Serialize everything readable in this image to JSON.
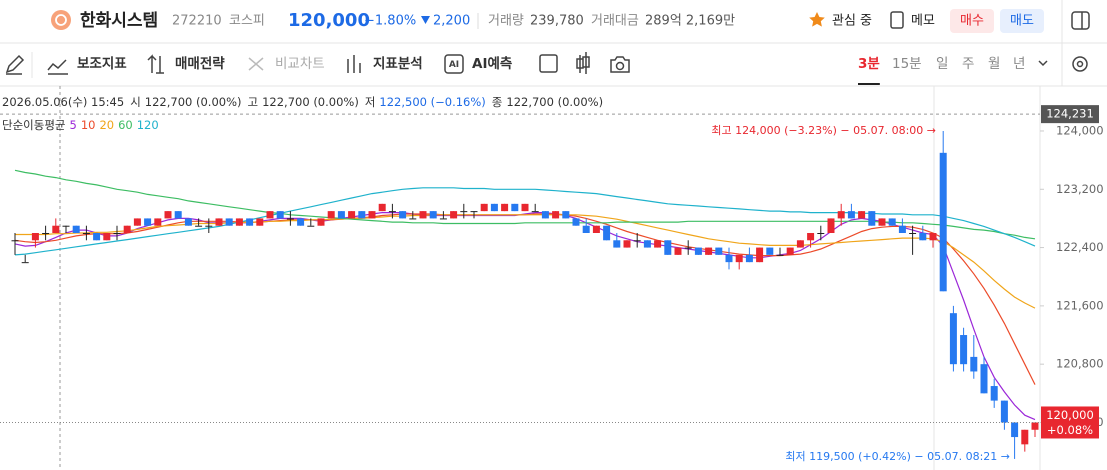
{
  "header": {
    "name": "한화시스템",
    "code": "272210",
    "market": "코스피",
    "price": "120,000",
    "change_rate": "−1.80%",
    "change": "2,200",
    "volume_label": "거래량",
    "volume": "239,780",
    "amount_label": "거래대금",
    "amount": "289억 2,169만",
    "watch": "관심 중",
    "memo": "메모",
    "buy": "매수",
    "sell": "매도"
  },
  "toolbar": {
    "tools": [
      "보조지표",
      "매매전략",
      "비교차트",
      "지표분석",
      "AI예측"
    ],
    "ai_icon": "AI",
    "timeframes": [
      "3분",
      "15분",
      "일",
      "주",
      "월",
      "년"
    ],
    "selected": 0
  },
  "chart_data": {
    "type": "candlestick",
    "info": {
      "date": "2026.05.06(수) 15:45",
      "fields": [
        {
          "label": "시",
          "value": "122,700 (0.00%)"
        },
        {
          "label": "고",
          "value": "122,700 (0.00%)"
        },
        {
          "label": "저",
          "value": "122,500 (−0.16%)"
        },
        {
          "label": "종",
          "value": "122,700 (0.00%)"
        }
      ]
    },
    "indicator_label": "단순이동평균",
    "up_color": "#e8272f",
    "down_color": "#2679f0",
    "flat_color": "#222222",
    "ylim": [
      119348,
      124617
    ],
    "yticks": [
      {
        "value": 124000,
        "label": "124,000"
      },
      {
        "value": 123200,
        "label": "123,200"
      },
      {
        "value": 122400,
        "label": "122,400"
      },
      {
        "value": 121600,
        "label": "121,600"
      },
      {
        "value": 120800,
        "label": "120,800"
      },
      {
        "value": 120000,
        "label": "120,000"
      }
    ],
    "grid": false,
    "crosshair": {
      "value": 124231,
      "label": "124,231"
    },
    "current_price": {
      "value": 120000,
      "label": "120,000",
      "change": "+0.08%"
    },
    "annotations": [
      {
        "text": "최고 124,000 (−3.23%) − 05.07. 08:00 →",
        "kind": "high"
      },
      {
        "text": "최저 119,500 (+0.42%) − 05.07. 08:21 →",
        "kind": "low"
      }
    ],
    "open": [
      122500,
      122200,
      122500,
      122600,
      122600,
      122700,
      122700,
      122600,
      122600,
      122500,
      122600,
      122600,
      122700,
      122800,
      122700,
      122800,
      122900,
      122800,
      122700,
      122700,
      122700,
      122800,
      122700,
      122800,
      122700,
      122800,
      122900,
      122800,
      122800,
      122700,
      122700,
      122800,
      122900,
      122800,
      122900,
      122800,
      122900,
      122900,
      122900,
      122800,
      122800,
      122900,
      122800,
      122800,
      122900,
      122900,
      122900,
      123000,
      122900,
      123000,
      122900,
      122900,
      122900,
      122800,
      122900,
      122800,
      122700,
      122600,
      122700,
      122500,
      122400,
      122500,
      122500,
      122400,
      122500,
      122300,
      122400,
      122400,
      122300,
      122400,
      122300,
      122200,
      122300,
      122200,
      122400,
      122300,
      122300,
      122400,
      122500,
      122600,
      122600,
      122800,
      122900,
      122800,
      122900,
      122700,
      122800,
      122700,
      122600,
      122600,
      122500,
      123700,
      121500,
      121200,
      120900,
      120800,
      120500,
      120300,
      120000,
      119700,
      119900
    ],
    "high": [
      122600,
      122300,
      122600,
      122700,
      122800,
      122700,
      122700,
      122700,
      122600,
      122600,
      122700,
      122700,
      122800,
      122800,
      122800,
      122900,
      122900,
      122800,
      122800,
      122800,
      122800,
      122800,
      122800,
      122800,
      122800,
      122900,
      122900,
      122900,
      122800,
      122800,
      122800,
      122900,
      122900,
      122900,
      122900,
      122900,
      123000,
      123000,
      122900,
      122900,
      122900,
      122900,
      122900,
      122900,
      123000,
      122900,
      123000,
      123000,
      123000,
      123000,
      123000,
      123000,
      122900,
      122900,
      122900,
      122800,
      122800,
      122700,
      122700,
      122600,
      122500,
      122600,
      122500,
      122500,
      122500,
      122400,
      122500,
      122400,
      122400,
      122400,
      122400,
      122300,
      122400,
      122400,
      122400,
      122400,
      122400,
      122500,
      122600,
      122700,
      122800,
      123000,
      123000,
      122900,
      122900,
      122800,
      122800,
      122800,
      122700,
      122700,
      122600,
      124000,
      121600,
      121300,
      121200,
      120900,
      120600,
      120300,
      120000,
      119900,
      120000
    ],
    "low": [
      122300,
      122200,
      122400,
      122500,
      122600,
      122600,
      122600,
      122500,
      122500,
      122500,
      122500,
      122600,
      122700,
      122700,
      122700,
      122800,
      122800,
      122700,
      122700,
      122600,
      122700,
      122700,
      122700,
      122700,
      122700,
      122800,
      122800,
      122700,
      122700,
      122700,
      122700,
      122800,
      122800,
      122800,
      122800,
      122800,
      122900,
      122800,
      122800,
      122800,
      122800,
      122800,
      122800,
      122800,
      122800,
      122800,
      122900,
      122900,
      122900,
      122900,
      122900,
      122900,
      122800,
      122800,
      122800,
      122700,
      122600,
      122600,
      122500,
      122400,
      122400,
      122400,
      122400,
      122400,
      122300,
      122300,
      122300,
      122300,
      122300,
      122300,
      122100,
      122100,
      122200,
      122200,
      122300,
      122300,
      122300,
      122400,
      122400,
      122500,
      122600,
      122700,
      122800,
      122800,
      122700,
      122700,
      122700,
      122600,
      122300,
      122500,
      122400,
      121800,
      120700,
      120700,
      120600,
      120400,
      120200,
      119900,
      119500,
      119600,
      119800
    ],
    "close": [
      122500,
      122200,
      122600,
      122600,
      122700,
      122700,
      122600,
      122600,
      122500,
      122600,
      122600,
      122700,
      122800,
      122700,
      122800,
      122900,
      122800,
      122700,
      122700,
      122700,
      122800,
      122700,
      122800,
      122700,
      122800,
      122900,
      122800,
      122800,
      122700,
      122700,
      122800,
      122900,
      122800,
      122900,
      122800,
      122900,
      123000,
      122900,
      122800,
      122800,
      122900,
      122800,
      122800,
      122900,
      122900,
      122900,
      123000,
      122900,
      123000,
      122900,
      123000,
      122900,
      122800,
      122900,
      122800,
      122700,
      122600,
      122700,
      122500,
      122400,
      122500,
      122500,
      122400,
      122500,
      122300,
      122400,
      122400,
      122300,
      122400,
      122300,
      122200,
      122300,
      122200,
      122400,
      122300,
      122300,
      122400,
      122500,
      122600,
      122600,
      122800,
      122900,
      122800,
      122900,
      122700,
      122800,
      122700,
      122600,
      122600,
      122500,
      122600,
      121800,
      120800,
      120800,
      120700,
      120400,
      120300,
      120000,
      119800,
      119900,
      120000
    ],
    "series": [
      {
        "name": "5",
        "color": "#9b27d8",
        "values": [
          122450,
          122420,
          122430,
          122480,
          122540,
          122600,
          122640,
          122640,
          122600,
          122560,
          122560,
          122600,
          122660,
          122700,
          122740,
          122780,
          122800,
          122800,
          122780,
          122740,
          122740,
          122740,
          122740,
          122740,
          122760,
          122780,
          122800,
          122800,
          122800,
          122780,
          122760,
          122780,
          122800,
          122820,
          122840,
          122860,
          122880,
          122880,
          122880,
          122860,
          122840,
          122840,
          122840,
          122840,
          122840,
          122840,
          122840,
          122840,
          122840,
          122840,
          122860,
          122880,
          122880,
          122860,
          122840,
          122800,
          122740,
          122680,
          122620,
          122560,
          122520,
          122480,
          122460,
          122440,
          122420,
          122400,
          122380,
          122360,
          122340,
          122320,
          122300,
          122280,
          122260,
          122260,
          122280,
          122300,
          122320,
          122360,
          122440,
          122520,
          122620,
          122720,
          122780,
          122800,
          122780,
          122760,
          122720,
          122680,
          122640,
          122600,
          122580,
          122420,
          122050,
          121680,
          121280,
          120900,
          120620,
          120420,
          120240,
          120100,
          120040
        ]
      },
      {
        "name": "10",
        "color": "#ec4b2a",
        "values": [
          122500,
          122480,
          122470,
          122480,
          122500,
          122530,
          122560,
          122580,
          122590,
          122590,
          122590,
          122600,
          122620,
          122650,
          122680,
          122710,
          122740,
          122760,
          122760,
          122760,
          122760,
          122760,
          122750,
          122750,
          122750,
          122760,
          122770,
          122780,
          122780,
          122780,
          122780,
          122780,
          122790,
          122800,
          122810,
          122820,
          122840,
          122850,
          122860,
          122860,
          122860,
          122860,
          122850,
          122850,
          122850,
          122850,
          122850,
          122850,
          122850,
          122850,
          122850,
          122860,
          122860,
          122860,
          122850,
          122830,
          122800,
          122760,
          122720,
          122670,
          122620,
          122580,
          122540,
          122500,
          122470,
          122440,
          122410,
          122390,
          122370,
          122350,
          122330,
          122310,
          122300,
          122290,
          122290,
          122290,
          122300,
          122310,
          122340,
          122380,
          122440,
          122500,
          122560,
          122620,
          122660,
          122680,
          122690,
          122690,
          122680,
          122650,
          122600,
          122530,
          122380,
          122220,
          122040,
          121840,
          121610,
          121360,
          121080,
          120800,
          120520
        ]
      },
      {
        "name": "20",
        "color": "#f0a51a",
        "values": [
          122580,
          122580,
          122580,
          122580,
          122590,
          122590,
          122600,
          122600,
          122610,
          122610,
          122620,
          122630,
          122650,
          122670,
          122690,
          122700,
          122710,
          122720,
          122730,
          122730,
          122730,
          122740,
          122740,
          122750,
          122750,
          122760,
          122760,
          122770,
          122770,
          122780,
          122780,
          122790,
          122790,
          122800,
          122800,
          122810,
          122820,
          122830,
          122830,
          122840,
          122840,
          122850,
          122850,
          122850,
          122850,
          122850,
          122850,
          122850,
          122850,
          122850,
          122850,
          122850,
          122850,
          122850,
          122850,
          122850,
          122840,
          122830,
          122810,
          122790,
          122760,
          122730,
          122700,
          122670,
          122640,
          122610,
          122580,
          122550,
          122520,
          122500,
          122480,
          122460,
          122450,
          122440,
          122430,
          122430,
          122430,
          122430,
          122440,
          122450,
          122460,
          122470,
          122480,
          122490,
          122500,
          122510,
          122520,
          122530,
          122530,
          122530,
          122520,
          122480,
          122400,
          122300,
          122200,
          122080,
          121950,
          121830,
          121720,
          121640,
          121570
        ]
      },
      {
        "name": "60",
        "color": "#3dbd63",
        "values": [
          123460,
          123430,
          123410,
          123380,
          123360,
          123330,
          123310,
          123280,
          123260,
          123230,
          123200,
          123180,
          123160,
          123130,
          123110,
          123090,
          123070,
          123040,
          123020,
          123000,
          122980,
          122960,
          122940,
          122920,
          122900,
          122880,
          122870,
          122850,
          122840,
          122830,
          122820,
          122810,
          122800,
          122790,
          122780,
          122770,
          122760,
          122750,
          122750,
          122740,
          122740,
          122740,
          122730,
          122730,
          122730,
          122730,
          122730,
          122730,
          122730,
          122730,
          122740,
          122740,
          122740,
          122740,
          122740,
          122740,
          122740,
          122740,
          122740,
          122750,
          122750,
          122750,
          122750,
          122750,
          122750,
          122750,
          122760,
          122760,
          122760,
          122760,
          122760,
          122760,
          122760,
          122760,
          122760,
          122760,
          122760,
          122760,
          122760,
          122760,
          122760,
          122760,
          122760,
          122760,
          122760,
          122750,
          122750,
          122740,
          122740,
          122730,
          122720,
          122710,
          122690,
          122670,
          122650,
          122640,
          122620,
          122590,
          122570,
          122540,
          122520
        ]
      },
      {
        "name": "120",
        "color": "#1fb2cc",
        "values": [
          122300,
          122310,
          122330,
          122350,
          122370,
          122390,
          122410,
          122430,
          122450,
          122470,
          122490,
          122510,
          122530,
          122550,
          122570,
          122590,
          122610,
          122630,
          122650,
          122670,
          122690,
          122720,
          122750,
          122780,
          122810,
          122840,
          122870,
          122900,
          122930,
          122960,
          122990,
          123020,
          123050,
          123080,
          123110,
          123140,
          123160,
          123180,
          123200,
          123210,
          123220,
          123220,
          123220,
          123220,
          123210,
          123210,
          123210,
          123200,
          123200,
          123200,
          123200,
          123200,
          123190,
          123180,
          123170,
          123160,
          123150,
          123140,
          123120,
          123100,
          123080,
          123060,
          123040,
          123020,
          123000,
          122990,
          122980,
          122970,
          122960,
          122950,
          122940,
          122930,
          122920,
          122910,
          122900,
          122900,
          122890,
          122890,
          122880,
          122880,
          122880,
          122880,
          122880,
          122870,
          122870,
          122860,
          122860,
          122860,
          122850,
          122850,
          122850,
          122830,
          122800,
          122770,
          122730,
          122690,
          122640,
          122590,
          122540,
          122480,
          122420
        ]
      }
    ]
  }
}
